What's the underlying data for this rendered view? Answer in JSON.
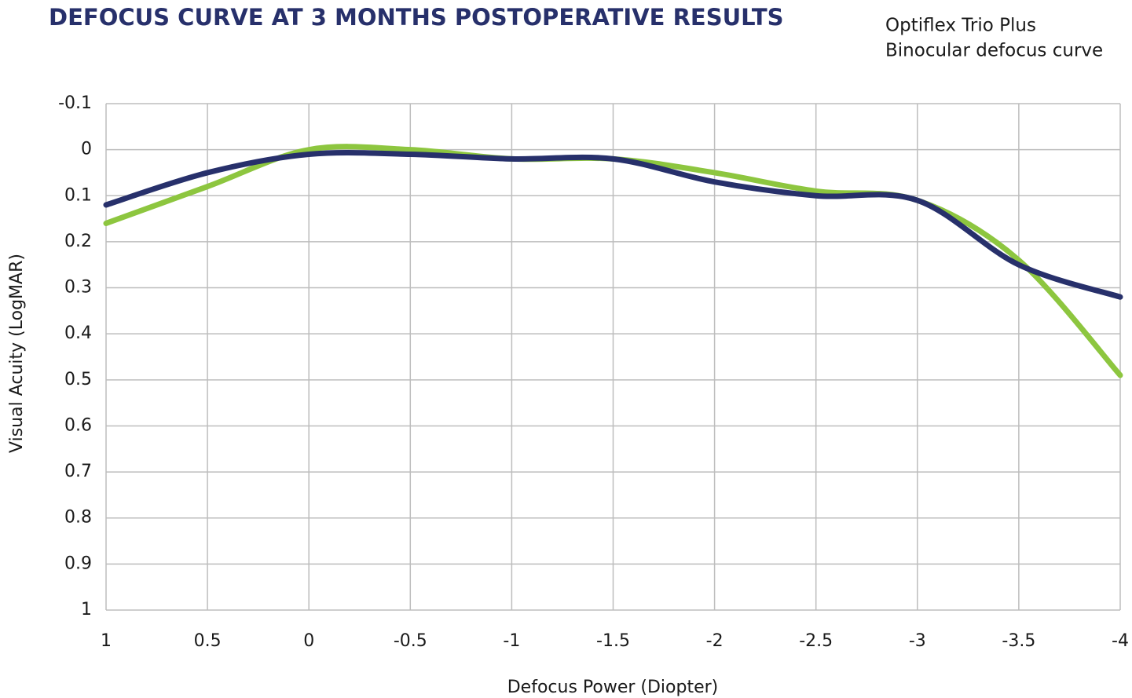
{
  "chart_data": {
    "type": "line",
    "title": "DEFOCUS CURVE AT 3 MONTHS POSTOPERATIVE RESULTS",
    "subtitle": [
      "Optiflex Trio Plus",
      "Binocular defocus curve"
    ],
    "x_label": "Defocus Power (Diopter)",
    "y_label": "Visual Acuity (LogMAR)",
    "x": [
      1,
      0.5,
      0,
      -0.5,
      -1,
      -1.5,
      -2,
      -2.5,
      -3,
      -3.5,
      -4
    ],
    "series": [
      {
        "color": "#8dc63f",
        "values": [
          0.16,
          0.08,
          0.0,
          0.0,
          0.02,
          0.02,
          0.05,
          0.09,
          0.11,
          0.24,
          0.49
        ]
      },
      {
        "color": "#27306b",
        "values": [
          0.12,
          0.05,
          0.01,
          0.01,
          0.02,
          0.02,
          0.07,
          0.1,
          0.11,
          0.25,
          0.32
        ]
      }
    ],
    "xlim": [
      1,
      -4
    ],
    "xticks": [
      1,
      0.5,
      0,
      -0.5,
      -1,
      -1.5,
      -2,
      -2.5,
      -3,
      -3.5,
      -4
    ],
    "ylim": [
      1,
      -0.1
    ],
    "yticks": [
      -0.1,
      0,
      0.1,
      0.2,
      0.3,
      0.4,
      0.5,
      0.6,
      0.7,
      0.8,
      0.9,
      1
    ],
    "grid": true
  }
}
